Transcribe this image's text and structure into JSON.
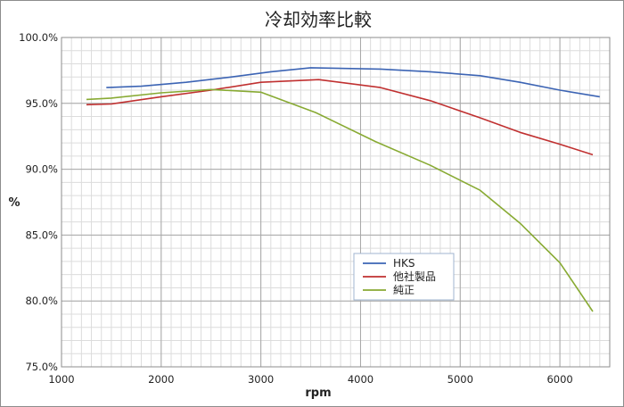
{
  "chart_data": {
    "type": "line",
    "title": "冷却効率比較",
    "xlabel": "rpm",
    "ylabel": "%",
    "xlim": [
      1000,
      6500
    ],
    "ylim": [
      75,
      100
    ],
    "x_ticks": [
      1000,
      2000,
      3000,
      4000,
      5000,
      6000
    ],
    "x_tick_labels": [
      "1000",
      "2000",
      "3000",
      "4000",
      "5000",
      "6000"
    ],
    "y_ticks": [
      75,
      80,
      85,
      90,
      95,
      100
    ],
    "y_tick_labels": [
      "75.0%",
      "80.0%",
      "85.0%",
      "90.0%",
      "95.0%",
      "100.0%"
    ],
    "grid": true,
    "legend_position": "bottom-center",
    "series": [
      {
        "name": "HKS",
        "color": "#3c64b4",
        "points": [
          [
            1450,
            96.2
          ],
          [
            1800,
            96.3
          ],
          [
            2250,
            96.6
          ],
          [
            2700,
            97.0
          ],
          [
            3100,
            97.4
          ],
          [
            3500,
            97.7
          ],
          [
            4200,
            97.6
          ],
          [
            4700,
            97.4
          ],
          [
            5200,
            97.1
          ],
          [
            5600,
            96.6
          ],
          [
            6000,
            96.0
          ],
          [
            6400,
            95.5
          ]
        ]
      },
      {
        "name": "他社製品",
        "color": "#c03030",
        "points": [
          [
            1250,
            94.9
          ],
          [
            1500,
            94.95
          ],
          [
            2000,
            95.5
          ],
          [
            2500,
            96.0
          ],
          [
            3000,
            96.6
          ],
          [
            3580,
            96.8
          ],
          [
            4200,
            96.2
          ],
          [
            4700,
            95.2
          ],
          [
            5200,
            93.9
          ],
          [
            5600,
            92.8
          ],
          [
            6000,
            91.9
          ],
          [
            6330,
            91.1
          ]
        ]
      },
      {
        "name": "純正",
        "color": "#88aa33",
        "points": [
          [
            1250,
            95.3
          ],
          [
            1500,
            95.4
          ],
          [
            2000,
            95.8
          ],
          [
            2500,
            96.05
          ],
          [
            3000,
            95.85
          ],
          [
            3550,
            94.3
          ],
          [
            4150,
            92.1
          ],
          [
            4700,
            90.3
          ],
          [
            5200,
            88.4
          ],
          [
            5600,
            85.9
          ],
          [
            6000,
            82.9
          ],
          [
            6330,
            79.2
          ]
        ]
      }
    ]
  }
}
